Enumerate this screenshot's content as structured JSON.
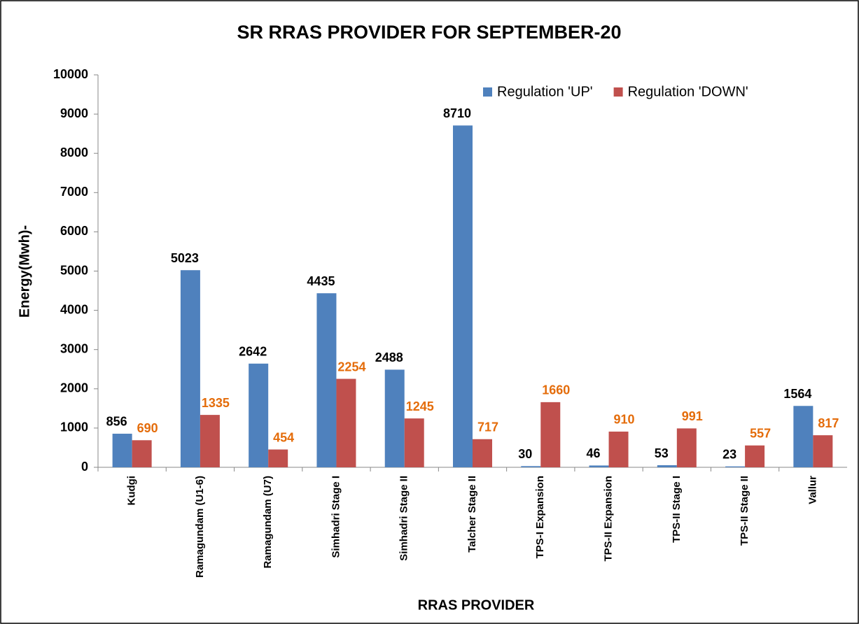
{
  "chart_data": {
    "type": "bar",
    "title": "SR RRAS PROVIDER FOR SEPTEMBER-20",
    "x_label": "RRAS PROVIDER",
    "y_label": "Energy(Mwh)-",
    "categories": [
      "Kudgi",
      "Ramagundam (U1-6)",
      "Ramagundam (U7)",
      "Simhadri Stage I",
      "Simhadri Stage II",
      "Talcher Stage II",
      "TPS-I Expansion",
      "TPS-II Expansion",
      "TPS-II Stage I",
      "TPS-II Stage II",
      "Vallur"
    ],
    "series": [
      {
        "name": "Regulation 'UP'",
        "color": "#4f81bd",
        "label_color": "#000000",
        "values": [
          856,
          5023,
          2642,
          4435,
          2488,
          8710,
          30,
          46,
          53,
          23,
          1564
        ]
      },
      {
        "name": "Regulation 'DOWN'",
        "color": "#c0504d",
        "label_color": "#e46c0a",
        "values": [
          690,
          1335,
          454,
          2254,
          1245,
          717,
          1660,
          910,
          991,
          557,
          817
        ]
      }
    ],
    "ylim": [
      0,
      10000
    ],
    "yticks": [
      0,
      1000,
      2000,
      3000,
      4000,
      5000,
      6000,
      7000,
      8000,
      9000,
      10000
    ],
    "grid": false,
    "legend": "top-right"
  }
}
